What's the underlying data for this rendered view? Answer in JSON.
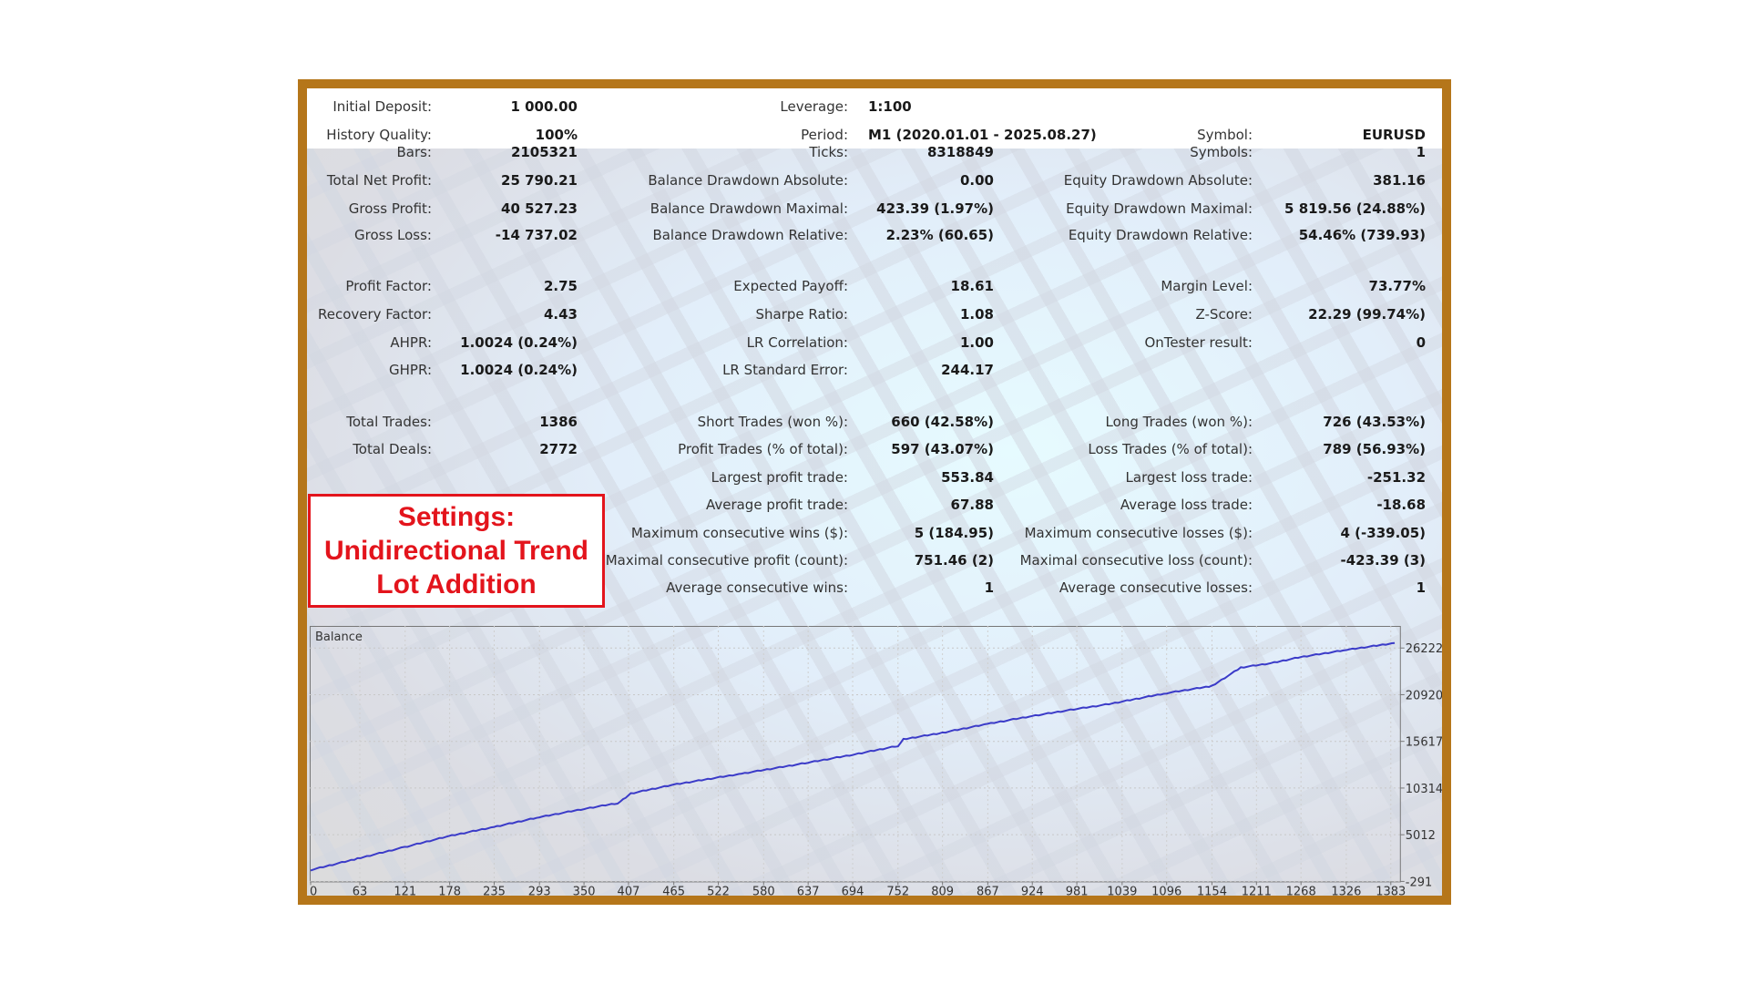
{
  "header": {
    "initial_deposit": {
      "label": "Initial Deposit:",
      "value": "1 000.00"
    },
    "leverage": {
      "label": "Leverage:",
      "value": "1:100"
    },
    "history_quality": {
      "label": "History Quality:",
      "value": "100%"
    },
    "period": {
      "label": "Period:",
      "value": "M1 (2020.01.01 - 2025.08.27)"
    },
    "symbol": {
      "label": "Symbol:",
      "value": "EURUSD"
    }
  },
  "stats": [
    [
      {
        "label": "Bars:",
        "value": "2105321"
      },
      {
        "label": "Ticks:",
        "value": "8318849"
      },
      {
        "label": "Symbols:",
        "value": "1"
      }
    ],
    [
      {
        "label": "Total Net Profit:",
        "value": "25 790.21"
      },
      {
        "label": "Balance Drawdown Absolute:",
        "value": "0.00"
      },
      {
        "label": "Equity Drawdown Absolute:",
        "value": "381.16"
      }
    ],
    [
      {
        "label": "Gross Profit:",
        "value": "40 527.23"
      },
      {
        "label": "Balance Drawdown Maximal:",
        "value": "423.39 (1.97%)"
      },
      {
        "label": "Equity Drawdown Maximal:",
        "value": "5 819.56 (24.88%)"
      }
    ],
    [
      {
        "label": "Gross Loss:",
        "value": "-14 737.02"
      },
      {
        "label": "Balance Drawdown Relative:",
        "value": "2.23% (60.65)"
      },
      {
        "label": "Equity Drawdown Relative:",
        "value": "54.46% (739.93)"
      }
    ],
    [
      {
        "label": "Profit Factor:",
        "value": "2.75"
      },
      {
        "label": "Expected Payoff:",
        "value": "18.61"
      },
      {
        "label": "Margin Level:",
        "value": "73.77%"
      }
    ],
    [
      {
        "label": "Recovery Factor:",
        "value": "4.43"
      },
      {
        "label": "Sharpe Ratio:",
        "value": "1.08"
      },
      {
        "label": "Z-Score:",
        "value": "22.29 (99.74%)"
      }
    ],
    [
      {
        "label": "AHPR:",
        "value": "1.0024 (0.24%)"
      },
      {
        "label": "LR Correlation:",
        "value": "1.00"
      },
      {
        "label": "OnTester result:",
        "value": "0"
      }
    ],
    [
      {
        "label": "GHPR:",
        "value": "1.0024 (0.24%)"
      },
      {
        "label": "LR Standard Error:",
        "value": "244.17"
      },
      null
    ],
    [
      {
        "label": "Total Trades:",
        "value": "1386"
      },
      {
        "label": "Short Trades (won %):",
        "value": "660 (42.58%)"
      },
      {
        "label": "Long Trades (won %):",
        "value": "726 (43.53%)"
      }
    ],
    [
      {
        "label": "Total Deals:",
        "value": "2772"
      },
      {
        "label": "Profit Trades (% of total):",
        "value": "597 (43.07%)"
      },
      {
        "label": "Loss Trades (% of total):",
        "value": "789 (56.93%)"
      }
    ],
    [
      null,
      {
        "label": "Largest profit trade:",
        "value": "553.84"
      },
      {
        "label": "Largest loss trade:",
        "value": "-251.32"
      }
    ],
    [
      null,
      {
        "label": "Average profit trade:",
        "value": "67.88"
      },
      {
        "label": "Average loss trade:",
        "value": "-18.68"
      }
    ],
    [
      null,
      {
        "label": "Maximum consecutive wins ($):",
        "value": "5 (184.95)"
      },
      {
        "label": "Maximum consecutive losses ($):",
        "value": "4 (-339.05)"
      }
    ],
    [
      null,
      {
        "label": "Maximal consecutive profit (count):",
        "value": "751.46 (2)"
      },
      {
        "label": "Maximal consecutive loss (count):",
        "value": "-423.39 (3)"
      }
    ],
    [
      null,
      {
        "label": "Average consecutive wins:",
        "value": "1"
      },
      {
        "label": "Average consecutive losses:",
        "value": "1"
      }
    ]
  ],
  "settings_box": {
    "line1": "Settings:",
    "line2": "Unidirectional Trend",
    "line3": "Lot Addition"
  },
  "chart_data": {
    "type": "line",
    "title": "Balance",
    "x_ticks": [
      "0",
      "63",
      "121",
      "178",
      "235",
      "293",
      "350",
      "407",
      "465",
      "522",
      "580",
      "637",
      "694",
      "752",
      "809",
      "867",
      "924",
      "981",
      "1039",
      "1096",
      "1154",
      "1211",
      "1268",
      "1326",
      "1383"
    ],
    "y_ticks": [
      "26222",
      "20920",
      "15617",
      "10314",
      "5012",
      "-291"
    ],
    "xlim": [
      0,
      1390
    ],
    "ylim": [
      -291,
      26222
    ],
    "series": [
      {
        "name": "Balance",
        "color": "#3b3bc8",
        "points": [
          [
            0,
            1000
          ],
          [
            60,
            2300
          ],
          [
            120,
            3600
          ],
          [
            177,
            4850
          ],
          [
            235,
            5900
          ],
          [
            293,
            7000
          ],
          [
            350,
            7950
          ],
          [
            393,
            8600
          ],
          [
            400,
            9000
          ],
          [
            410,
            9700
          ],
          [
            465,
            10700
          ],
          [
            552,
            11950
          ],
          [
            637,
            13200
          ],
          [
            694,
            14100
          ],
          [
            752,
            15100
          ],
          [
            759,
            15850
          ],
          [
            809,
            16600
          ],
          [
            867,
            17600
          ],
          [
            924,
            18500
          ],
          [
            981,
            19300
          ],
          [
            1022,
            19850
          ],
          [
            1096,
            21100
          ],
          [
            1154,
            21900
          ],
          [
            1191,
            24000
          ],
          [
            1230,
            24500
          ],
          [
            1268,
            25200
          ],
          [
            1326,
            26000
          ],
          [
            1388,
            26790
          ]
        ]
      }
    ]
  },
  "colors": {
    "frame": "#b5761a",
    "settings_red": "#e3141c",
    "balance_line": "#3b3bc8"
  }
}
